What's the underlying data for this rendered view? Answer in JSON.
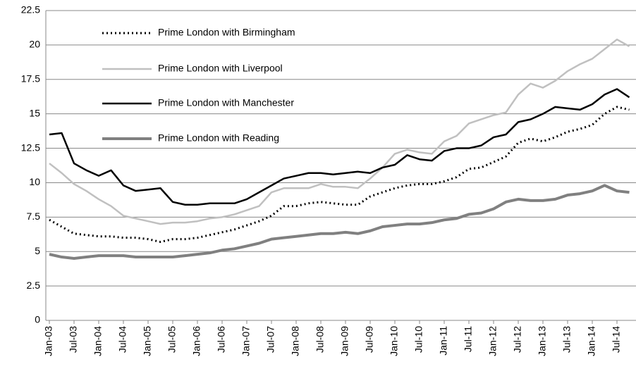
{
  "chart_data": {
    "type": "line",
    "categories": [
      "Jan-03",
      null,
      "Jul-03",
      null,
      "Jan-04",
      null,
      "Jul-04",
      null,
      "Jan-05",
      null,
      "Jul-05",
      null,
      "Jan-06",
      null,
      "Jul-06",
      null,
      "Jan-07",
      null,
      "Jul-07",
      null,
      "Jan-08",
      null,
      "Jul-08",
      null,
      "Jan-09",
      null,
      "Jul-09",
      null,
      "Jan-10",
      null,
      "Jul-10",
      null,
      "Jan-11",
      null,
      "Jul-11",
      null,
      "Jan-12",
      null,
      "Jul-12",
      null,
      "Jan-13",
      null,
      "Jul-13",
      null,
      "Jan-14",
      null,
      "Jul-14",
      null
    ],
    "series": [
      {
        "name": "Prime London with Birmingham",
        "color": "#000000",
        "line_style": "dotted",
        "values": [
          7.3,
          6.8,
          6.3,
          6.2,
          6.1,
          6.1,
          6.0,
          6.0,
          5.9,
          5.7,
          5.9,
          5.9,
          6.0,
          6.2,
          6.4,
          6.6,
          6.9,
          7.2,
          7.6,
          8.3,
          8.3,
          8.5,
          8.6,
          8.5,
          8.4,
          8.4,
          9.0,
          9.3,
          9.6,
          9.8,
          9.9,
          9.9,
          10.1,
          10.4,
          11.0,
          11.1,
          11.5,
          11.9,
          12.9,
          13.2,
          13.0,
          13.3,
          13.7,
          13.9,
          14.2,
          15.0,
          15.5,
          15.3
        ]
      },
      {
        "name": "Prime London with Liverpool",
        "color": "#c0c0c0",
        "line_style": "solid",
        "values": [
          11.4,
          10.7,
          9.9,
          9.4,
          8.8,
          8.3,
          7.6,
          7.4,
          7.2,
          7.0,
          7.1,
          7.1,
          7.2,
          7.4,
          7.5,
          7.7,
          8.0,
          8.3,
          9.3,
          9.6,
          9.6,
          9.6,
          9.9,
          9.7,
          9.7,
          9.6,
          10.3,
          11.1,
          12.1,
          12.4,
          12.2,
          12.1,
          13.0,
          13.4,
          14.3,
          14.6,
          14.9,
          15.1,
          16.4,
          17.2,
          16.9,
          17.4,
          18.1,
          18.6,
          19.0,
          19.7,
          20.4,
          19.9
        ]
      },
      {
        "name": "Prime London with Manchester",
        "color": "#000000",
        "line_style": "solid",
        "values": [
          13.5,
          13.6,
          11.4,
          10.9,
          10.5,
          10.9,
          9.8,
          9.4,
          9.5,
          9.6,
          8.6,
          8.4,
          8.4,
          8.5,
          8.5,
          8.5,
          8.8,
          9.3,
          9.8,
          10.3,
          10.5,
          10.7,
          10.7,
          10.6,
          10.7,
          10.8,
          10.7,
          11.1,
          11.3,
          12.0,
          11.7,
          11.6,
          12.3,
          12.5,
          12.5,
          12.7,
          13.3,
          13.5,
          14.4,
          14.6,
          15.0,
          15.5,
          15.4,
          15.3,
          15.7,
          16.4,
          16.8,
          16.2
        ]
      },
      {
        "name": "Prime London with Reading",
        "color": "#808080",
        "line_style": "solid",
        "values": [
          4.8,
          4.6,
          4.5,
          4.6,
          4.7,
          4.7,
          4.7,
          4.6,
          4.6,
          4.6,
          4.6,
          4.7,
          4.8,
          4.9,
          5.1,
          5.2,
          5.4,
          5.6,
          5.9,
          6.0,
          6.1,
          6.2,
          6.3,
          6.3,
          6.4,
          6.3,
          6.5,
          6.8,
          6.9,
          7.0,
          7.0,
          7.1,
          7.3,
          7.4,
          7.7,
          7.8,
          8.1,
          8.6,
          8.8,
          8.7,
          8.7,
          8.8,
          9.1,
          9.2,
          9.4,
          9.8,
          9.4,
          9.3
        ]
      }
    ],
    "ylim": [
      0,
      22.5
    ],
    "yticks": [
      0,
      2.5,
      5,
      7.5,
      10,
      12.5,
      15,
      17.5,
      20,
      22.5
    ],
    "grid": true
  }
}
